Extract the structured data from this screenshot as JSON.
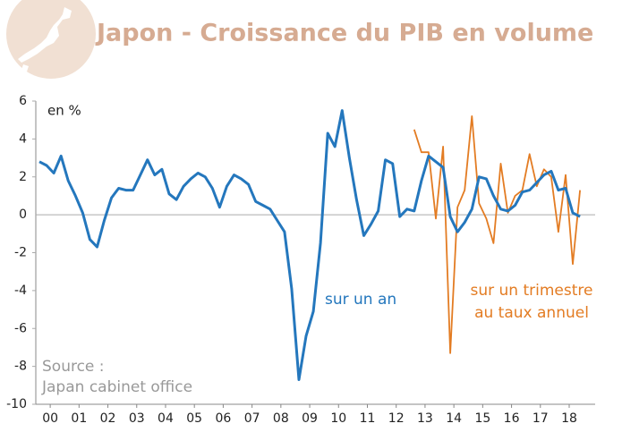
{
  "chart_data": {
    "type": "line",
    "title": "Japon - Croissance du PIB en volume",
    "ylabel": "en %",
    "source": [
      "Source :",
      "Japan cabinet office"
    ],
    "annotations": [
      [
        "sur un an"
      ],
      [
        "sur un trimestre",
        "au taux annuel"
      ]
    ],
    "xlim": [
      2000,
      2019.4
    ],
    "xticks": [
      {
        "value": 2000.5,
        "label": "00"
      },
      {
        "value": 2001.5,
        "label": "01"
      },
      {
        "value": 2002.5,
        "label": "02"
      },
      {
        "value": 2003.5,
        "label": "03"
      },
      {
        "value": 2004.5,
        "label": "04"
      },
      {
        "value": 2005.5,
        "label": "05"
      },
      {
        "value": 2006.5,
        "label": "06"
      },
      {
        "value": 2007.5,
        "label": "07"
      },
      {
        "value": 2008.5,
        "label": "08"
      },
      {
        "value": 2009.5,
        "label": "09"
      },
      {
        "value": 2010.5,
        "label": "10"
      },
      {
        "value": 2011.5,
        "label": "11"
      },
      {
        "value": 2012.5,
        "label": "12"
      },
      {
        "value": 2013.5,
        "label": "13"
      },
      {
        "value": 2014.5,
        "label": "14"
      },
      {
        "value": 2015.5,
        "label": "15"
      },
      {
        "value": 2016.5,
        "label": "16"
      },
      {
        "value": 2017.5,
        "label": "17"
      },
      {
        "value": 2018.5,
        "label": "18"
      }
    ],
    "ylim": [
      -10,
      6
    ],
    "yticks": [
      -10,
      -8,
      -6,
      -4,
      -2,
      0,
      2,
      4,
      6
    ],
    "series": [
      {
        "name": "sur un an",
        "color": "#2477bd",
        "x": [
          2000.125,
          2000.375,
          2000.625,
          2000.875,
          2001.125,
          2001.375,
          2001.625,
          2001.875,
          2002.125,
          2002.375,
          2002.625,
          2002.875,
          2003.125,
          2003.375,
          2003.625,
          2003.875,
          2004.125,
          2004.375,
          2004.625,
          2004.875,
          2005.125,
          2005.375,
          2005.625,
          2005.875,
          2006.125,
          2006.375,
          2006.625,
          2006.875,
          2007.125,
          2007.375,
          2007.625,
          2007.875,
          2008.125,
          2008.375,
          2008.625,
          2008.875,
          2009.125,
          2009.375,
          2009.625,
          2009.875,
          2010.125,
          2010.375,
          2010.625,
          2010.875,
          2011.125,
          2011.375,
          2011.625,
          2011.875,
          2012.125,
          2012.375,
          2012.625,
          2012.875,
          2013.125,
          2013.375,
          2013.625,
          2013.875,
          2014.125,
          2014.375,
          2014.625,
          2014.875,
          2015.125,
          2015.375,
          2015.625,
          2015.875,
          2016.125,
          2016.375,
          2016.625,
          2016.875,
          2017.125,
          2017.375,
          2017.625,
          2017.875,
          2018.125,
          2018.375,
          2018.625,
          2018.875
        ],
        "values": [
          2.8,
          2.6,
          2.2,
          3.1,
          1.8,
          1.0,
          0.1,
          -1.3,
          -1.7,
          -0.3,
          0.9,
          1.4,
          1.3,
          1.3,
          2.1,
          2.9,
          2.1,
          2.4,
          1.1,
          0.8,
          1.5,
          1.9,
          2.2,
          2.0,
          1.4,
          0.4,
          1.5,
          2.1,
          1.9,
          1.6,
          0.7,
          0.5,
          0.3,
          -0.3,
          -0.9,
          -3.9,
          -8.7,
          -6.4,
          -5.1,
          -1.5,
          4.3,
          3.6,
          5.5,
          3.0,
          0.8,
          -1.1,
          -0.5,
          0.2,
          2.9,
          2.7,
          -0.1,
          0.3,
          0.2,
          1.8,
          3.1,
          2.8,
          2.5,
          -0.1,
          -0.9,
          -0.4,
          0.3,
          2.0,
          1.9,
          1.0,
          0.3,
          0.2,
          0.5,
          1.2,
          1.3,
          1.7,
          2.1,
          2.3,
          1.3,
          1.4,
          0.1,
          -0.1
        ]
      },
      {
        "name": "sur un trimestre au taux annuel",
        "color": "#e37c23",
        "x": [
          2013.125,
          2013.375,
          2013.625,
          2013.875,
          2014.125,
          2014.375,
          2014.625,
          2014.875,
          2015.125,
          2015.375,
          2015.625,
          2015.875,
          2016.125,
          2016.375,
          2016.625,
          2016.875,
          2017.125,
          2017.375,
          2017.625,
          2017.875,
          2018.125,
          2018.375,
          2018.625,
          2018.875
        ],
        "values": [
          4.5,
          3.3,
          3.3,
          -0.2,
          3.6,
          -7.3,
          0.4,
          1.3,
          5.2,
          0.6,
          -0.2,
          -1.5,
          2.7,
          0.1,
          1.0,
          1.3,
          3.2,
          1.5,
          2.4,
          2.0,
          -0.9,
          2.1,
          -2.6,
          1.3
        ]
      }
    ]
  }
}
